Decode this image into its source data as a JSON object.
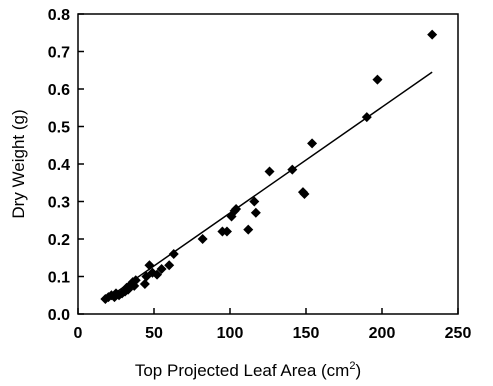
{
  "chart_data": {
    "type": "scatter",
    "title": "",
    "xlabel": "Top Projected Leaf Area (cm",
    "xlabel_sup": "2",
    "xlabel_end": ")",
    "ylabel": "Dry Weight (g)",
    "xlim": [
      0,
      250
    ],
    "ylim": [
      0,
      0.8
    ],
    "x_ticks": [
      "0",
      "50",
      "100",
      "150",
      "200",
      "250"
    ],
    "y_ticks": [
      "0.0",
      "0.1",
      "0.2",
      "0.3",
      "0.4",
      "0.5",
      "0.6",
      "0.7",
      "0.8"
    ],
    "grid": false,
    "legend": "none",
    "marker_color": "#000000",
    "points": [
      {
        "x": 18,
        "y": 0.04
      },
      {
        "x": 20,
        "y": 0.045
      },
      {
        "x": 22,
        "y": 0.05
      },
      {
        "x": 24,
        "y": 0.045
      },
      {
        "x": 25,
        "y": 0.055
      },
      {
        "x": 27,
        "y": 0.05
      },
      {
        "x": 29,
        "y": 0.055
      },
      {
        "x": 31,
        "y": 0.06
      },
      {
        "x": 32,
        "y": 0.07
      },
      {
        "x": 33,
        "y": 0.065
      },
      {
        "x": 35,
        "y": 0.08
      },
      {
        "x": 36,
        "y": 0.085
      },
      {
        "x": 37,
        "y": 0.075
      },
      {
        "x": 38,
        "y": 0.09
      },
      {
        "x": 44,
        "y": 0.08
      },
      {
        "x": 45,
        "y": 0.1
      },
      {
        "x": 47,
        "y": 0.13
      },
      {
        "x": 49,
        "y": 0.11
      },
      {
        "x": 52,
        "y": 0.105
      },
      {
        "x": 55,
        "y": 0.12
      },
      {
        "x": 60,
        "y": 0.13
      },
      {
        "x": 63,
        "y": 0.16
      },
      {
        "x": 82,
        "y": 0.2
      },
      {
        "x": 95,
        "y": 0.22
      },
      {
        "x": 98,
        "y": 0.22
      },
      {
        "x": 101,
        "y": 0.26
      },
      {
        "x": 103,
        "y": 0.275
      },
      {
        "x": 104,
        "y": 0.28
      },
      {
        "x": 112,
        "y": 0.225
      },
      {
        "x": 116,
        "y": 0.3
      },
      {
        "x": 117,
        "y": 0.27
      },
      {
        "x": 126,
        "y": 0.38
      },
      {
        "x": 141,
        "y": 0.385
      },
      {
        "x": 148,
        "y": 0.325
      },
      {
        "x": 149,
        "y": 0.32
      },
      {
        "x": 154,
        "y": 0.455
      },
      {
        "x": 190,
        "y": 0.525
      },
      {
        "x": 197,
        "y": 0.625
      },
      {
        "x": 233,
        "y": 0.745
      }
    ],
    "fit_line": {
      "x": [
        17,
        233
      ],
      "y": [
        0.035,
        0.645
      ]
    }
  }
}
